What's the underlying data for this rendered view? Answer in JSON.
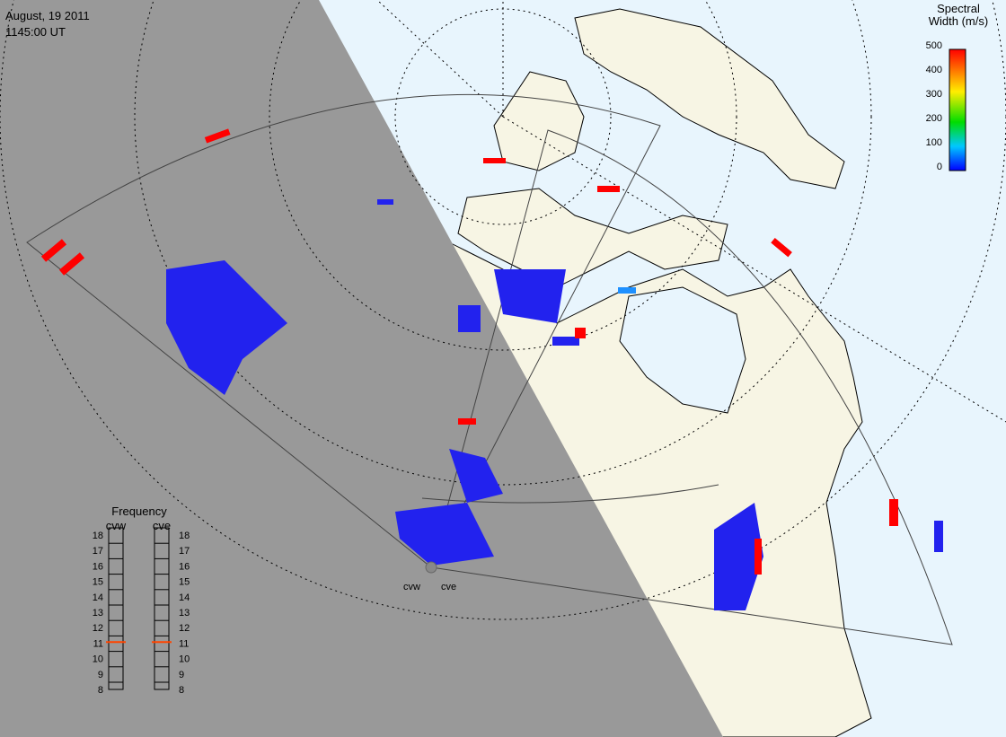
{
  "header": {
    "date": "August, 19 2011",
    "time": "1145:00 UT"
  },
  "colorbar": {
    "title_line1": "Spectral",
    "title_line2": "Width (m/s)",
    "range": [
      0,
      500
    ],
    "ticks": [
      0,
      100,
      200,
      300,
      400,
      500
    ]
  },
  "frequency": {
    "title": "Frequency",
    "range": [
      8,
      18
    ],
    "ticks": [
      8,
      9,
      10,
      11,
      12,
      13,
      14,
      15,
      16,
      17,
      18
    ],
    "radars": [
      {
        "name": "cvw",
        "value": 10.6
      },
      {
        "name": "cve",
        "value": 10.6
      }
    ]
  },
  "radar_labels": [
    "cvw",
    "cve"
  ]
}
